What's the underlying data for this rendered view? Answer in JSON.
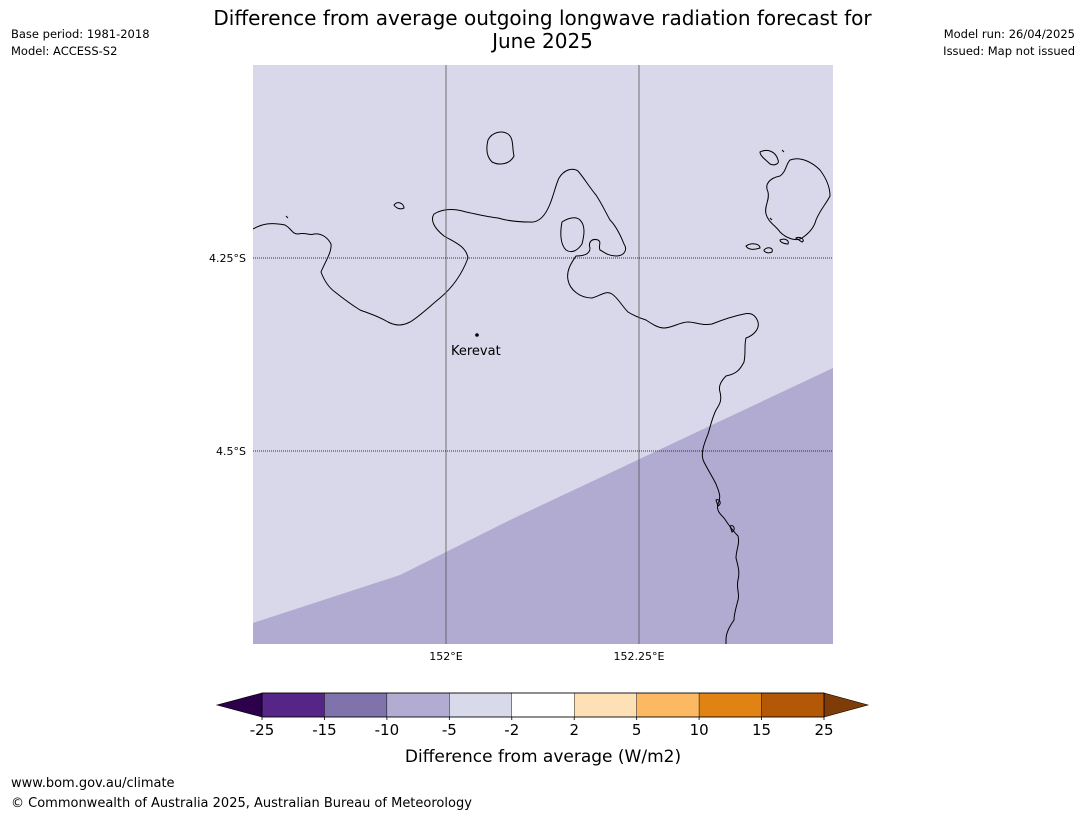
{
  "header": {
    "title_line1": "Difference from average outgoing longwave radiation forecast for",
    "title_line2": "June 2025",
    "left_info": [
      "Base period: 1981-2018",
      "Model: ACCESS-S2"
    ],
    "right_info": [
      "Model run: 26/04/2025",
      "Issued: Map not issued"
    ]
  },
  "map": {
    "lat_labels": [
      "4.25°S",
      "4.5°S"
    ],
    "lon_labels": [
      "152°E",
      "152.25°E"
    ],
    "places": [
      {
        "name": "Kerevat",
        "lon": 152.04,
        "lat": -4.35
      }
    ],
    "fill_colors": {
      "minus5_to_minus2": "#d8d8ea",
      "minus10_to_minus5": "#b1abd2"
    },
    "coastline_color": "#000000"
  },
  "colorbar": {
    "ticks": [
      "-25",
      "-15",
      "-10",
      "-5",
      "-2",
      "2",
      "5",
      "10",
      "15",
      "25"
    ],
    "colors": [
      "#552688",
      "#8073ac",
      "#b2abd2",
      "#d8daeb",
      "#ffffff",
      "#fee0b6",
      "#fdb863",
      "#e08214",
      "#b35806"
    ],
    "under_color": "#2d004b",
    "over_color": "#7f3b08",
    "label": "Difference from average (W/m2)"
  },
  "footer": {
    "url": "www.bom.gov.au/climate",
    "copyright": "© Commonwealth of Australia 2025, Australian Bureau of Meteorology"
  }
}
